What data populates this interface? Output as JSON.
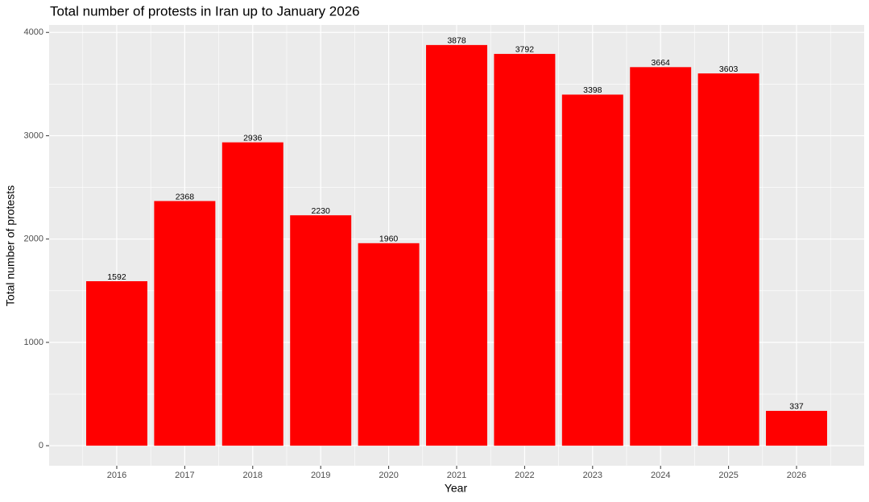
{
  "chart_data": {
    "type": "bar",
    "title": "Total number of protests in Iran up to January 2026",
    "x_label": "Year",
    "y_label": "Total number of protests",
    "x": [
      2016,
      2017,
      2018,
      2019,
      2020,
      2021,
      2022,
      2023,
      2024,
      2025,
      2026
    ],
    "values": [
      1592,
      2368,
      2936,
      2230,
      1960,
      3878,
      3792,
      3398,
      3664,
      3603,
      337
    ],
    "color": "#ff0000",
    "xlim": [
      2015.005,
      2026.995
    ],
    "xticks": [
      2016,
      2017,
      2018,
      2019,
      2020,
      2021,
      2022,
      2023,
      2024,
      2025,
      2026
    ],
    "ylim": [
      -194,
      4072
    ],
    "yticks": [
      0,
      1000,
      2000,
      3000,
      4000
    ],
    "grid": true
  }
}
